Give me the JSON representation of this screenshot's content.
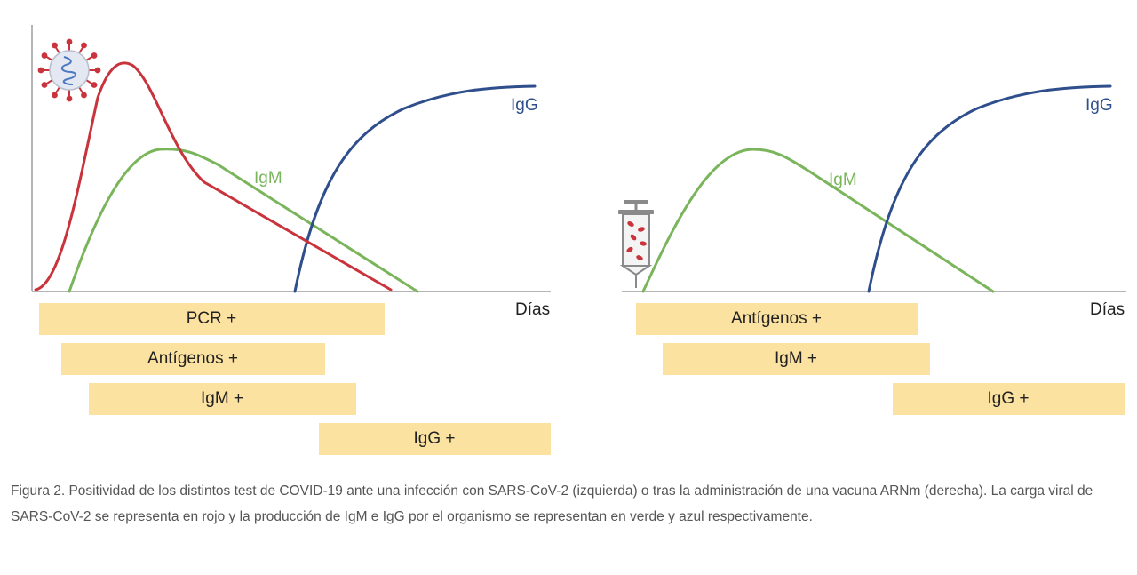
{
  "colors": {
    "viral_load": "#c8333c",
    "igm": "#7ab55c",
    "igg": "#2f4e8c",
    "bar": "#fbe2a0",
    "axis": "#b5b5b5",
    "caption": "#555555"
  },
  "icons": {
    "left_panel": "virus-icon",
    "right_panel": "syringe-icon"
  },
  "left_panel": {
    "x_axis_label": "Días",
    "curve_labels": {
      "igm": "IgM",
      "igg": "IgG"
    },
    "test_bars": [
      {
        "label": "PCR +",
        "series": "pcr"
      },
      {
        "label": "Antígenos +",
        "series": "antigen"
      },
      {
        "label": "IgM +",
        "series": "igm"
      },
      {
        "label": "IgG +",
        "series": "igg"
      }
    ]
  },
  "right_panel": {
    "x_axis_label": "Días",
    "curve_labels": {
      "igm": "IgM",
      "igg": "IgG"
    },
    "test_bars": [
      {
        "label": "Antígenos +",
        "series": "antigen"
      },
      {
        "label": "IgM +",
        "series": "igm"
      },
      {
        "label": "IgG +",
        "series": "igg"
      }
    ]
  },
  "caption": "Figura 2. Positividad de los distintos test de COVID-19 ante una infección con SARS-CoV-2 (izquierda) o tras la administración de una vacuna ARNm (derecha). La carga viral de SARS-CoV-2 se representa en rojo y la producción de IgM e IgG por el organismo se representan en verde y azul respectivamente."
}
